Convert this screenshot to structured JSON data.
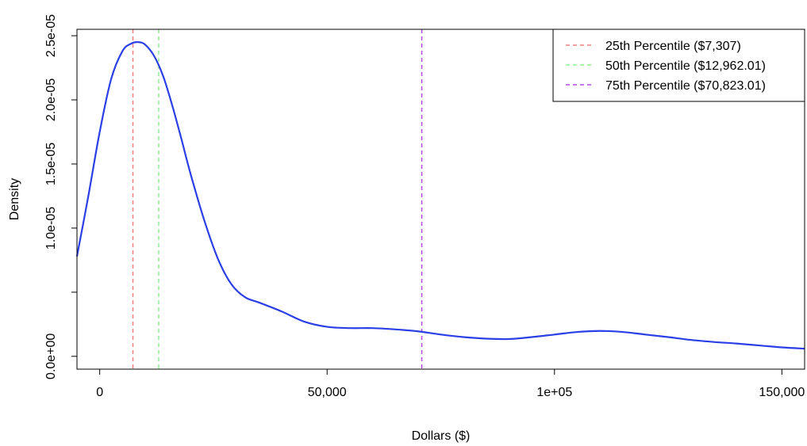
{
  "chart_data": {
    "type": "line",
    "title": "",
    "xlabel": "Dollars ($)",
    "ylabel": "Density",
    "xlim": [
      -5000,
      155000
    ],
    "ylim": [
      -1e-06,
      2.55e-05
    ],
    "x_ticks": [
      {
        "value": 0,
        "label": "0"
      },
      {
        "value": 50000,
        "label": "50,000"
      },
      {
        "value": 100000,
        "label": "1e+05"
      },
      {
        "value": 150000,
        "label": "150,000"
      }
    ],
    "y_ticks": [
      {
        "value": 0,
        "label": "0.0e+00"
      },
      {
        "value": 5e-06,
        "label": ""
      },
      {
        "value": 1e-05,
        "label": "1.0e-05"
      },
      {
        "value": 1.5e-05,
        "label": "1.5e-05"
      },
      {
        "value": 2e-05,
        "label": "2.0e-05"
      },
      {
        "value": 2.5e-05,
        "label": "2.5e-05"
      }
    ],
    "grid": false,
    "series": [
      {
        "color": "#2b3fe6",
        "x": [
          -5000,
          -2500,
          0,
          2500,
          5000,
          7000,
          8500,
          10000,
          12000,
          14000,
          16000,
          18000,
          20000,
          23000,
          26000,
          29000,
          32000,
          35000,
          40000,
          45000,
          50000,
          55000,
          60000,
          65000,
          70000,
          75000,
          80000,
          85000,
          90000,
          95000,
          100000,
          105000,
          110000,
          115000,
          120000,
          125000,
          130000,
          135000,
          140000,
          145000,
          150000,
          155000
        ],
        "y": [
          7.8e-06,
          1.25e-05,
          1.75e-05,
          2.16e-05,
          2.38e-05,
          2.44e-05,
          2.45e-05,
          2.43e-05,
          2.34e-05,
          2.18e-05,
          1.95e-05,
          1.69e-05,
          1.42e-05,
          1.06e-05,
          7.6e-06,
          5.6e-06,
          4.6e-06,
          4.2e-06,
          3.5e-06,
          2.7e-06,
          2.3e-06,
          2.2e-06,
          2.2e-06,
          2.1e-06,
          1.95e-06,
          1.7e-06,
          1.5e-06,
          1.38e-06,
          1.35e-06,
          1.5e-06,
          1.7e-06,
          1.9e-06,
          1.98e-06,
          1.9e-06,
          1.7e-06,
          1.5e-06,
          1.28e-06,
          1.12e-06,
          1e-06,
          8.5e-07,
          7e-07,
          6e-07
        ]
      }
    ],
    "vlines": [
      {
        "x": 7307,
        "color": "#f08080",
        "label": "25th Percentile ($7,307)"
      },
      {
        "x": 12962.01,
        "color": "#90ee90",
        "label": "50th Percentile ($12,962.01)"
      },
      {
        "x": 70823.01,
        "color": "#b048e8",
        "label": "75th Percentile ($70,823.01)"
      }
    ],
    "legend_position": "top-right"
  }
}
